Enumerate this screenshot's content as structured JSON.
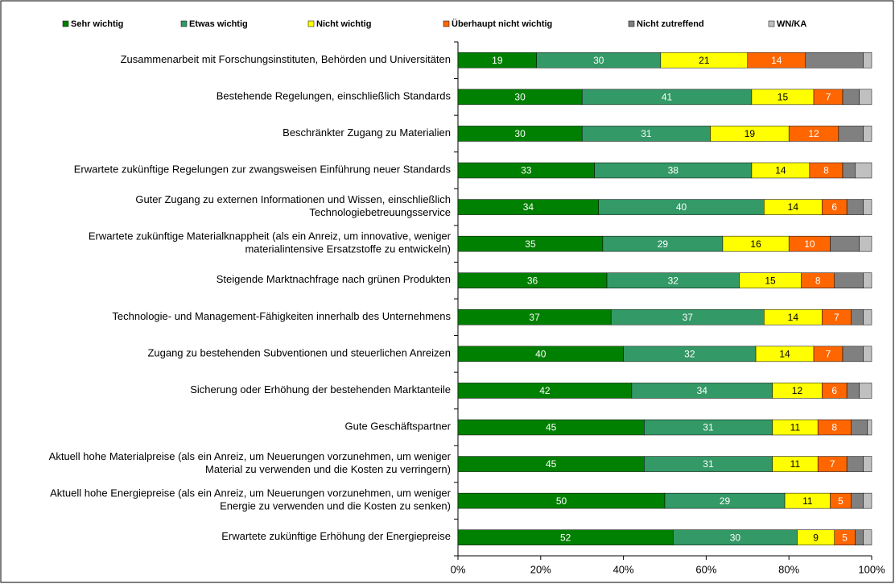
{
  "chart_data": {
    "type": "stacked_barh",
    "categories": [
      "Zusammenarbeit mit Forschungsinstituten, Behörden und Universitäten",
      "Bestehende Regelungen, einschließlich Standards",
      "Beschränkter Zugang zu Materialien",
      "Erwartete zukünftige Regelungen zur zwangsweisen Einführung neuer Standards",
      "Guter Zugang zu externen Informationen und Wissen, einschließlich Technologiebetreuungsservice",
      "Erwartete zukünftige Materialknappheit (als ein Anreiz, um innovative, weniger materialintensive Ersatzstoffe zu entwickeln)",
      "Steigende Marktnachfrage nach grünen Produkten",
      "Technologie- und Management-Fähigkeiten innerhalb des Unternehmens",
      "Zugang zu bestehenden Subventionen und steuerlichen Anreizen",
      "Sicherung oder Erhöhung der bestehenden Marktanteile",
      "Gute Geschäftspartner",
      "Aktuell hohe Materialpreise (als ein Anreiz, um Neuerungen vorzunehmen, um weniger Material zu verwenden und die Kosten zu verringern)",
      "Aktuell hohe Energiepreise (als ein Anreiz, um Neuerungen vorzunehmen, um weniger Energie zu verwenden und die Kosten zu senken)",
      "Erwartete zukünftige Erhöhung der Energiepreise"
    ],
    "series": [
      {
        "name": "Sehr wichtig",
        "color": "#008000",
        "data_labels": true,
        "values": [
          19,
          30,
          30,
          33,
          34,
          35,
          36,
          37,
          40,
          42,
          45,
          45,
          50,
          52
        ]
      },
      {
        "name": "Etwas wichtig",
        "color": "#339966",
        "data_labels": true,
        "values": [
          30,
          41,
          31,
          38,
          40,
          29,
          32,
          37,
          32,
          34,
          31,
          31,
          29,
          30
        ]
      },
      {
        "name": "Nicht wichtig",
        "color": "#ffff00",
        "data_labels": true,
        "values": [
          21,
          15,
          19,
          14,
          14,
          16,
          15,
          14,
          14,
          12,
          11,
          11,
          11,
          9
        ]
      },
      {
        "name": "Überhaupt nicht wichtig",
        "color": "#ff6600",
        "data_labels": true,
        "values": [
          14,
          7,
          12,
          8,
          6,
          10,
          8,
          7,
          7,
          6,
          8,
          7,
          5,
          5
        ]
      },
      {
        "name": "Nicht zutreffend",
        "color": "#808080",
        "data_labels": false,
        "values": [
          14,
          4,
          6,
          3,
          4,
          7,
          7,
          3,
          5,
          3,
          4,
          4,
          3,
          2
        ]
      },
      {
        "name": "WN/KA",
        "color": "#c0c0c0",
        "data_labels": false,
        "values": [
          2,
          3,
          2,
          4,
          2,
          3,
          2,
          2,
          2,
          3,
          1,
          2,
          2,
          2
        ]
      }
    ],
    "xlim": [
      0,
      100
    ],
    "xticks": [
      {
        "value": 0,
        "label": "0%"
      },
      {
        "value": 20,
        "label": "20%"
      },
      {
        "value": 40,
        "label": "40%"
      },
      {
        "value": 60,
        "label": "60%"
      },
      {
        "value": 80,
        "label": "80%"
      },
      {
        "value": 100,
        "label": "100%"
      }
    ],
    "legend": "top"
  }
}
